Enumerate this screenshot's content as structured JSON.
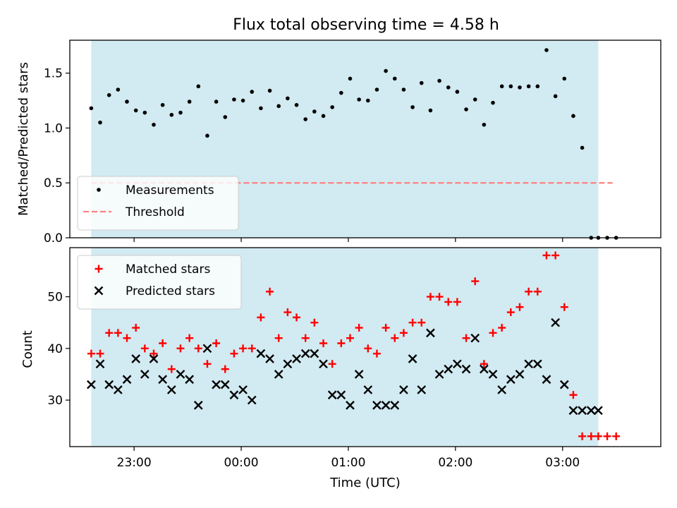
{
  "chart_data": [
    {
      "type": "scatter",
      "title": "Flux total observing time = 4.58 h",
      "xlabel": "",
      "ylabel": "Matched/Predicted stars",
      "xlim": [
        "22:24",
        "03:55"
      ],
      "ylim": [
        0,
        1.8
      ],
      "yticks": [
        "0.0",
        "0.5",
        "1.0",
        "1.5"
      ],
      "shaded_region": {
        "from": "22:36",
        "to": "03:20",
        "color": "#add8e6"
      },
      "legend": {
        "placement": "lower-left",
        "entries": [
          "Measurements",
          "Threshold"
        ]
      },
      "series": [
        {
          "name": "Measurements",
          "marker": "dot",
          "color": "#000000",
          "x": [
            "22:36",
            "22:41",
            "22:46",
            "22:51",
            "22:56",
            "23:01",
            "23:06",
            "23:11",
            "23:16",
            "23:21",
            "23:26",
            "23:31",
            "23:36",
            "23:41",
            "23:46",
            "23:51",
            "23:56",
            "00:01",
            "00:06",
            "00:11",
            "00:16",
            "00:21",
            "00:26",
            "00:31",
            "00:36",
            "00:41",
            "00:46",
            "00:51",
            "00:56",
            "01:01",
            "01:06",
            "01:11",
            "01:16",
            "01:21",
            "01:26",
            "01:31",
            "01:36",
            "01:41",
            "01:46",
            "01:51",
            "01:56",
            "02:01",
            "02:06",
            "02:11",
            "02:16",
            "02:21",
            "02:26",
            "02:31",
            "02:36",
            "02:41",
            "02:46",
            "02:51",
            "02:56",
            "03:01",
            "03:06",
            "03:11",
            "03:16",
            "03:20",
            "03:25",
            "03:30"
          ],
          "y": [
            1.18,
            1.05,
            1.3,
            1.35,
            1.24,
            1.16,
            1.14,
            1.03,
            1.21,
            1.12,
            1.14,
            1.24,
            1.38,
            0.93,
            1.24,
            1.1,
            1.26,
            1.25,
            1.33,
            1.18,
            1.34,
            1.2,
            1.27,
            1.21,
            1.08,
            1.15,
            1.11,
            1.19,
            1.32,
            1.45,
            1.26,
            1.25,
            1.35,
            1.52,
            1.45,
            1.35,
            1.19,
            1.41,
            1.16,
            1.43,
            1.37,
            1.33,
            1.17,
            1.26,
            1.03,
            1.23,
            1.38,
            1.38,
            1.37,
            1.38,
            1.38,
            1.71,
            1.29,
            1.45,
            1.11,
            0.82,
            0.0,
            0.0,
            0.0,
            0.0
          ]
        },
        {
          "name": "Threshold",
          "style": "dashed",
          "color": "#ff8080",
          "x": [
            "22:36",
            "03:28"
          ],
          "y": [
            0.5,
            0.5
          ]
        }
      ]
    },
    {
      "type": "scatter",
      "title": "",
      "xlabel": "Time (UTC)",
      "ylabel": "Count",
      "xlim": [
        "22:24",
        "03:55"
      ],
      "ylim": [
        21,
        59.5
      ],
      "yticks": [
        "30",
        "40",
        "50"
      ],
      "xticks": [
        "23:00",
        "00:00",
        "01:00",
        "02:00",
        "03:00"
      ],
      "shaded_region": {
        "from": "22:36",
        "to": "03:20",
        "color": "#add8e6"
      },
      "legend": {
        "placement": "upper-left",
        "entries": [
          "Matched stars",
          "Predicted stars"
        ]
      },
      "series": [
        {
          "name": "Matched stars",
          "marker": "plus",
          "color": "#ff0000",
          "x": [
            "22:36",
            "22:41",
            "22:46",
            "22:51",
            "22:56",
            "23:01",
            "23:06",
            "23:11",
            "23:16",
            "23:21",
            "23:26",
            "23:31",
            "23:36",
            "23:41",
            "23:46",
            "23:51",
            "23:56",
            "00:01",
            "00:06",
            "00:11",
            "00:16",
            "00:21",
            "00:26",
            "00:31",
            "00:36",
            "00:41",
            "00:46",
            "00:51",
            "00:56",
            "01:01",
            "01:06",
            "01:11",
            "01:16",
            "01:21",
            "01:26",
            "01:31",
            "01:36",
            "01:41",
            "01:46",
            "01:51",
            "01:56",
            "02:01",
            "02:06",
            "02:11",
            "02:16",
            "02:21",
            "02:26",
            "02:31",
            "02:36",
            "02:41",
            "02:46",
            "02:51",
            "02:56",
            "03:01",
            "03:06",
            "03:11",
            "03:16",
            "03:20",
            "03:25",
            "03:30"
          ],
          "y": [
            39,
            39,
            43,
            43,
            42,
            44,
            40,
            39,
            41,
            36,
            40,
            42,
            40,
            37,
            41,
            36,
            39,
            40,
            40,
            46,
            51,
            42,
            47,
            46,
            42,
            45,
            41,
            37,
            41,
            42,
            44,
            40,
            39,
            44,
            42,
            43,
            45,
            45,
            50,
            50,
            49,
            49,
            42,
            53,
            37,
            43,
            44,
            47,
            48,
            51,
            51,
            58,
            58,
            48,
            31,
            23,
            23,
            23,
            23,
            23
          ]
        },
        {
          "name": "Predicted stars",
          "marker": "x",
          "color": "#000000",
          "x": [
            "22:36",
            "22:41",
            "22:46",
            "22:51",
            "22:56",
            "23:01",
            "23:06",
            "23:11",
            "23:16",
            "23:21",
            "23:26",
            "23:31",
            "23:36",
            "23:41",
            "23:46",
            "23:51",
            "23:56",
            "00:01",
            "00:06",
            "00:11",
            "00:16",
            "00:21",
            "00:26",
            "00:31",
            "00:36",
            "00:41",
            "00:46",
            "00:51",
            "00:56",
            "01:01",
            "01:06",
            "01:11",
            "01:16",
            "01:21",
            "01:26",
            "01:31",
            "01:36",
            "01:41",
            "01:46",
            "01:51",
            "01:56",
            "02:01",
            "02:06",
            "02:11",
            "02:16",
            "02:21",
            "02:26",
            "02:31",
            "02:36",
            "02:41",
            "02:46",
            "02:51",
            "02:56",
            "03:01",
            "03:06",
            "03:11",
            "03:16",
            "03:20"
          ],
          "y": [
            33,
            37,
            33,
            32,
            34,
            38,
            35,
            38,
            34,
            32,
            35,
            34,
            29,
            40,
            33,
            33,
            31,
            32,
            30,
            39,
            38,
            35,
            37,
            38,
            39,
            39,
            37,
            31,
            31,
            29,
            35,
            32,
            29,
            29,
            29,
            32,
            38,
            32,
            43,
            35,
            36,
            37,
            36,
            42,
            36,
            35,
            32,
            34,
            35,
            37,
            37,
            34,
            45,
            33,
            28,
            28,
            28,
            28
          ]
        }
      ]
    }
  ]
}
